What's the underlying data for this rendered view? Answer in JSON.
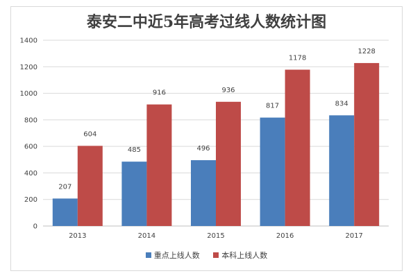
{
  "chart_data": {
    "type": "bar",
    "title": "泰安二中近5年高考过线人数统计图",
    "categories": [
      "2013",
      "2014",
      "2015",
      "2016",
      "2017"
    ],
    "series": [
      {
        "name": "重点上线人数",
        "values": [
          207,
          485,
          496,
          817,
          834
        ],
        "color": "#4a7ebb"
      },
      {
        "name": "本科上线人数",
        "values": [
          604,
          916,
          936,
          1178,
          1228
        ],
        "color": "#be4b48"
      }
    ],
    "ylim": [
      0,
      1400
    ],
    "yticks": [
      0,
      200,
      400,
      600,
      800,
      1000,
      1200,
      1400
    ],
    "grid": true,
    "legend": "bottom",
    "xlabel": "",
    "ylabel": ""
  }
}
